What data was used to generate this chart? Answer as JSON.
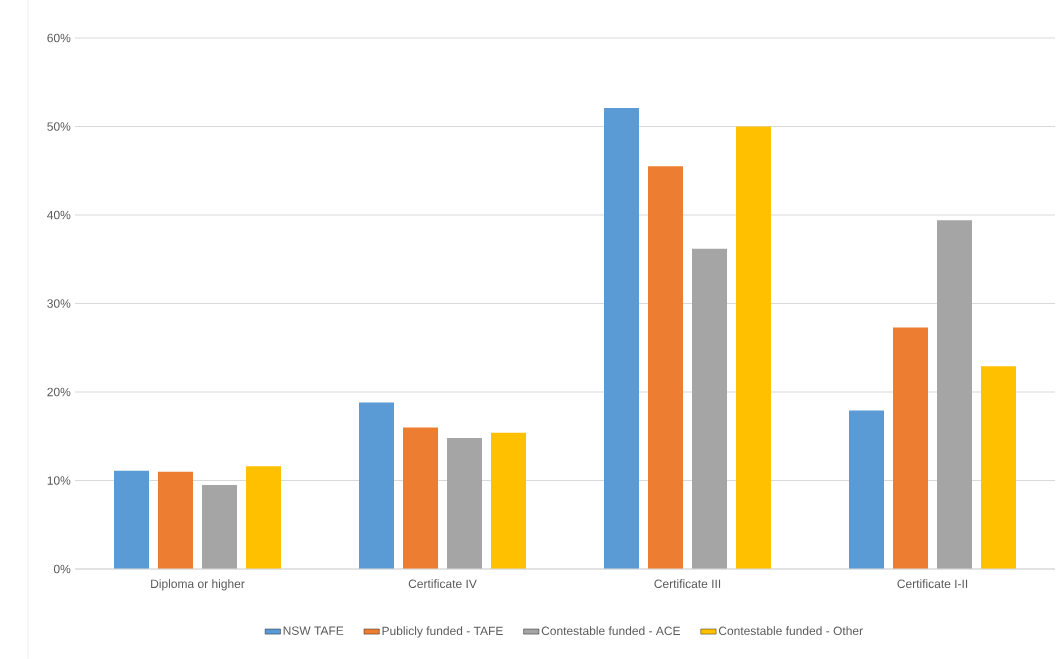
{
  "chart_data": {
    "type": "bar",
    "categories": [
      "Diploma or higher",
      "Certificate IV",
      "Certificate III",
      "Certificate I-II"
    ],
    "series": [
      {
        "name": "NSW TAFE",
        "color": "#5b9bd5",
        "values": [
          11.1,
          18.8,
          52.1,
          17.9
        ]
      },
      {
        "name": "Publicly funded - TAFE",
        "color": "#ed7d31",
        "values": [
          11.0,
          16.0,
          45.5,
          27.3
        ]
      },
      {
        "name": "Contestable funded - ACE",
        "color": "#a5a5a5",
        "values": [
          9.5,
          14.8,
          36.2,
          39.4
        ]
      },
      {
        "name": "Contestable funded - Other",
        "color": "#ffc000",
        "values": [
          11.6,
          15.4,
          50.0,
          22.9
        ]
      }
    ],
    "ylim": [
      0,
      60
    ],
    "yticks": [
      {
        "value": 0,
        "label": "0%"
      },
      {
        "value": 10,
        "label": "10%"
      },
      {
        "value": 20,
        "label": "20%"
      },
      {
        "value": 30,
        "label": "30%"
      },
      {
        "value": 40,
        "label": "40%"
      },
      {
        "value": 50,
        "label": "50%"
      },
      {
        "value": 60,
        "label": "60%"
      }
    ],
    "grid": "y",
    "legend": "bottom"
  }
}
